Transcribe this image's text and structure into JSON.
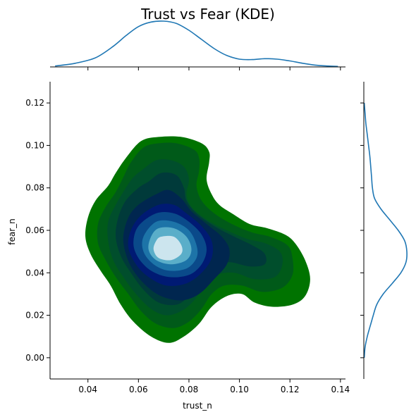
{
  "chart_data": {
    "type": "kde_joint",
    "title": "Trust vs Fear (KDE)",
    "xlabel": "trust_n",
    "ylabel": "fear_n",
    "xlim": [
      0.025,
      0.142
    ],
    "ylim": [
      -0.01,
      0.13
    ],
    "xticks": [
      0.04,
      0.06,
      0.08,
      0.1,
      0.12,
      0.14
    ],
    "xtick_labels": [
      "0.04",
      "0.06",
      "0.08",
      "0.10",
      "0.12",
      "0.14"
    ],
    "yticks": [
      0.0,
      0.02,
      0.04,
      0.06,
      0.08,
      0.1,
      0.12
    ],
    "ytick_labels": [
      "0.00",
      "0.02",
      "0.04",
      "0.06",
      "0.08",
      "0.10",
      "0.12"
    ],
    "grid": false,
    "colormap": "ocean",
    "levels": [
      {
        "color": "#007300",
        "points": [
          [
            0.055,
            0.094
          ],
          [
            0.061,
            0.102
          ],
          [
            0.068,
            0.104
          ],
          [
            0.077,
            0.104
          ],
          [
            0.085,
            0.101
          ],
          [
            0.088,
            0.097
          ],
          [
            0.088,
            0.092
          ],
          [
            0.087,
            0.084
          ],
          [
            0.089,
            0.077
          ],
          [
            0.092,
            0.072
          ],
          [
            0.097,
            0.068
          ],
          [
            0.104,
            0.063
          ],
          [
            0.111,
            0.061
          ],
          [
            0.118,
            0.058
          ],
          [
            0.122,
            0.054
          ],
          [
            0.126,
            0.046
          ],
          [
            0.128,
            0.037
          ],
          [
            0.126,
            0.029
          ],
          [
            0.121,
            0.025
          ],
          [
            0.113,
            0.024
          ],
          [
            0.106,
            0.026
          ],
          [
            0.101,
            0.03
          ],
          [
            0.095,
            0.029
          ],
          [
            0.089,
            0.024
          ],
          [
            0.084,
            0.016
          ],
          [
            0.078,
            0.01
          ],
          [
            0.072,
            0.007
          ],
          [
            0.065,
            0.01
          ],
          [
            0.058,
            0.017
          ],
          [
            0.053,
            0.025
          ],
          [
            0.049,
            0.034
          ],
          [
            0.045,
            0.041
          ],
          [
            0.041,
            0.049
          ],
          [
            0.039,
            0.057
          ],
          [
            0.04,
            0.066
          ],
          [
            0.043,
            0.074
          ],
          [
            0.048,
            0.081
          ],
          [
            0.051,
            0.087
          ]
        ]
      },
      {
        "color": "#005a19",
        "points": [
          [
            0.057,
            0.092
          ],
          [
            0.062,
            0.099
          ],
          [
            0.068,
            0.101
          ],
          [
            0.075,
            0.101
          ],
          [
            0.082,
            0.098
          ],
          [
            0.084,
            0.094
          ],
          [
            0.084,
            0.088
          ],
          [
            0.083,
            0.081
          ],
          [
            0.085,
            0.074
          ],
          [
            0.09,
            0.068
          ],
          [
            0.097,
            0.063
          ],
          [
            0.105,
            0.059
          ],
          [
            0.112,
            0.057
          ],
          [
            0.119,
            0.053
          ],
          [
            0.121,
            0.047
          ],
          [
            0.121,
            0.039
          ],
          [
            0.117,
            0.033
          ],
          [
            0.109,
            0.031
          ],
          [
            0.101,
            0.034
          ],
          [
            0.094,
            0.034
          ],
          [
            0.089,
            0.03
          ],
          [
            0.085,
            0.023
          ],
          [
            0.08,
            0.017
          ],
          [
            0.074,
            0.014
          ],
          [
            0.067,
            0.016
          ],
          [
            0.061,
            0.022
          ],
          [
            0.056,
            0.03
          ],
          [
            0.051,
            0.038
          ],
          [
            0.047,
            0.046
          ],
          [
            0.044,
            0.054
          ],
          [
            0.044,
            0.063
          ],
          [
            0.047,
            0.071
          ],
          [
            0.051,
            0.078
          ],
          [
            0.054,
            0.085
          ]
        ]
      },
      {
        "color": "#004e2c",
        "points": [
          [
            0.061,
            0.088
          ],
          [
            0.067,
            0.093
          ],
          [
            0.073,
            0.093
          ],
          [
            0.078,
            0.09
          ],
          [
            0.08,
            0.084
          ],
          [
            0.079,
            0.077
          ],
          [
            0.081,
            0.071
          ],
          [
            0.087,
            0.065
          ],
          [
            0.095,
            0.06
          ],
          [
            0.103,
            0.056
          ],
          [
            0.11,
            0.054
          ],
          [
            0.116,
            0.05
          ],
          [
            0.117,
            0.044
          ],
          [
            0.114,
            0.038
          ],
          [
            0.106,
            0.037
          ],
          [
            0.098,
            0.04
          ],
          [
            0.091,
            0.039
          ],
          [
            0.086,
            0.034
          ],
          [
            0.082,
            0.027
          ],
          [
            0.077,
            0.022
          ],
          [
            0.071,
            0.02
          ],
          [
            0.065,
            0.023
          ],
          [
            0.059,
            0.03
          ],
          [
            0.054,
            0.038
          ],
          [
            0.05,
            0.046
          ],
          [
            0.048,
            0.055
          ],
          [
            0.048,
            0.064
          ],
          [
            0.051,
            0.072
          ],
          [
            0.055,
            0.08
          ],
          [
            0.058,
            0.085
          ]
        ]
      },
      {
        "color": "#003a3a",
        "points": [
          [
            0.064,
            0.083
          ],
          [
            0.069,
            0.087
          ],
          [
            0.075,
            0.086
          ],
          [
            0.078,
            0.08
          ],
          [
            0.079,
            0.074
          ],
          [
            0.083,
            0.068
          ],
          [
            0.09,
            0.062
          ],
          [
            0.098,
            0.057
          ],
          [
            0.105,
            0.053
          ],
          [
            0.11,
            0.049
          ],
          [
            0.11,
            0.044
          ],
          [
            0.104,
            0.043
          ],
          [
            0.096,
            0.045
          ],
          [
            0.089,
            0.043
          ],
          [
            0.084,
            0.036
          ],
          [
            0.08,
            0.029
          ],
          [
            0.075,
            0.025
          ],
          [
            0.068,
            0.026
          ],
          [
            0.062,
            0.032
          ],
          [
            0.057,
            0.04
          ],
          [
            0.053,
            0.048
          ],
          [
            0.051,
            0.057
          ],
          [
            0.052,
            0.066
          ],
          [
            0.055,
            0.074
          ],
          [
            0.06,
            0.08
          ]
        ]
      },
      {
        "color": "#00264f",
        "points": [
          [
            0.067,
            0.077
          ],
          [
            0.072,
            0.079
          ],
          [
            0.077,
            0.075
          ],
          [
            0.081,
            0.069
          ],
          [
            0.087,
            0.063
          ],
          [
            0.093,
            0.057
          ],
          [
            0.096,
            0.051
          ],
          [
            0.095,
            0.044
          ],
          [
            0.09,
            0.037
          ],
          [
            0.084,
            0.03
          ],
          [
            0.077,
            0.027
          ],
          [
            0.069,
            0.029
          ],
          [
            0.063,
            0.034
          ],
          [
            0.058,
            0.041
          ],
          [
            0.055,
            0.049
          ],
          [
            0.054,
            0.057
          ],
          [
            0.056,
            0.066
          ],
          [
            0.06,
            0.072
          ]
        ]
      },
      {
        "color": "#001a73",
        "points": [
          [
            0.068,
            0.072
          ],
          [
            0.074,
            0.072
          ],
          [
            0.079,
            0.068
          ],
          [
            0.085,
            0.062
          ],
          [
            0.089,
            0.055
          ],
          [
            0.089,
            0.047
          ],
          [
            0.085,
            0.04
          ],
          [
            0.079,
            0.035
          ],
          [
            0.071,
            0.034
          ],
          [
            0.064,
            0.038
          ],
          [
            0.059,
            0.044
          ],
          [
            0.056,
            0.052
          ],
          [
            0.057,
            0.06
          ],
          [
            0.061,
            0.067
          ]
        ]
      },
      {
        "color": "#0a4a8a",
        "points": [
          [
            0.067,
            0.068
          ],
          [
            0.074,
            0.068
          ],
          [
            0.08,
            0.064
          ],
          [
            0.085,
            0.058
          ],
          [
            0.087,
            0.051
          ],
          [
            0.085,
            0.044
          ],
          [
            0.08,
            0.039
          ],
          [
            0.072,
            0.038
          ],
          [
            0.065,
            0.041
          ],
          [
            0.06,
            0.047
          ],
          [
            0.058,
            0.054
          ],
          [
            0.06,
            0.062
          ]
        ]
      },
      {
        "color": "#1d74a8",
        "points": [
          [
            0.067,
            0.064
          ],
          [
            0.074,
            0.064
          ],
          [
            0.08,
            0.06
          ],
          [
            0.083,
            0.053
          ],
          [
            0.083,
            0.047
          ],
          [
            0.079,
            0.042
          ],
          [
            0.072,
            0.041
          ],
          [
            0.066,
            0.044
          ],
          [
            0.062,
            0.05
          ],
          [
            0.062,
            0.057
          ]
        ]
      },
      {
        "color": "#5aaec9",
        "points": [
          [
            0.068,
            0.061
          ],
          [
            0.074,
            0.061
          ],
          [
            0.079,
            0.057
          ],
          [
            0.081,
            0.051
          ],
          [
            0.079,
            0.046
          ],
          [
            0.073,
            0.044
          ],
          [
            0.067,
            0.046
          ],
          [
            0.064,
            0.051
          ],
          [
            0.065,
            0.057
          ]
        ]
      },
      {
        "color": "#cce5ee",
        "points": [
          [
            0.069,
            0.057
          ],
          [
            0.074,
            0.057
          ],
          [
            0.077,
            0.053
          ],
          [
            0.077,
            0.049
          ],
          [
            0.073,
            0.046
          ],
          [
            0.068,
            0.047
          ],
          [
            0.066,
            0.051
          ],
          [
            0.067,
            0.055
          ]
        ]
      }
    ],
    "marginal_x": {
      "color": "#1f77b4",
      "x": [
        0.027,
        0.035,
        0.043,
        0.05,
        0.055,
        0.06,
        0.065,
        0.07,
        0.075,
        0.08,
        0.085,
        0.09,
        0.095,
        0.1,
        0.105,
        0.11,
        0.115,
        0.12,
        0.125,
        0.13,
        0.135,
        0.139
      ],
      "density": [
        0.02,
        0.08,
        0.2,
        0.45,
        0.68,
        0.88,
        0.98,
        1.0,
        0.95,
        0.8,
        0.6,
        0.4,
        0.25,
        0.17,
        0.16,
        0.18,
        0.17,
        0.13,
        0.08,
        0.04,
        0.02,
        0.01
      ]
    },
    "marginal_y": {
      "color": "#1f77b4",
      "y": [
        0.0,
        0.005,
        0.01,
        0.015,
        0.02,
        0.025,
        0.03,
        0.035,
        0.04,
        0.045,
        0.05,
        0.055,
        0.06,
        0.065,
        0.07,
        0.075,
        0.08,
        0.085,
        0.09,
        0.095,
        0.1,
        0.105,
        0.11,
        0.115,
        0.12
      ],
      "density": [
        0.01,
        0.03,
        0.08,
        0.15,
        0.22,
        0.3,
        0.45,
        0.66,
        0.86,
        0.98,
        1.0,
        0.95,
        0.8,
        0.6,
        0.4,
        0.25,
        0.2,
        0.18,
        0.16,
        0.14,
        0.11,
        0.08,
        0.05,
        0.03,
        0.01
      ]
    }
  }
}
